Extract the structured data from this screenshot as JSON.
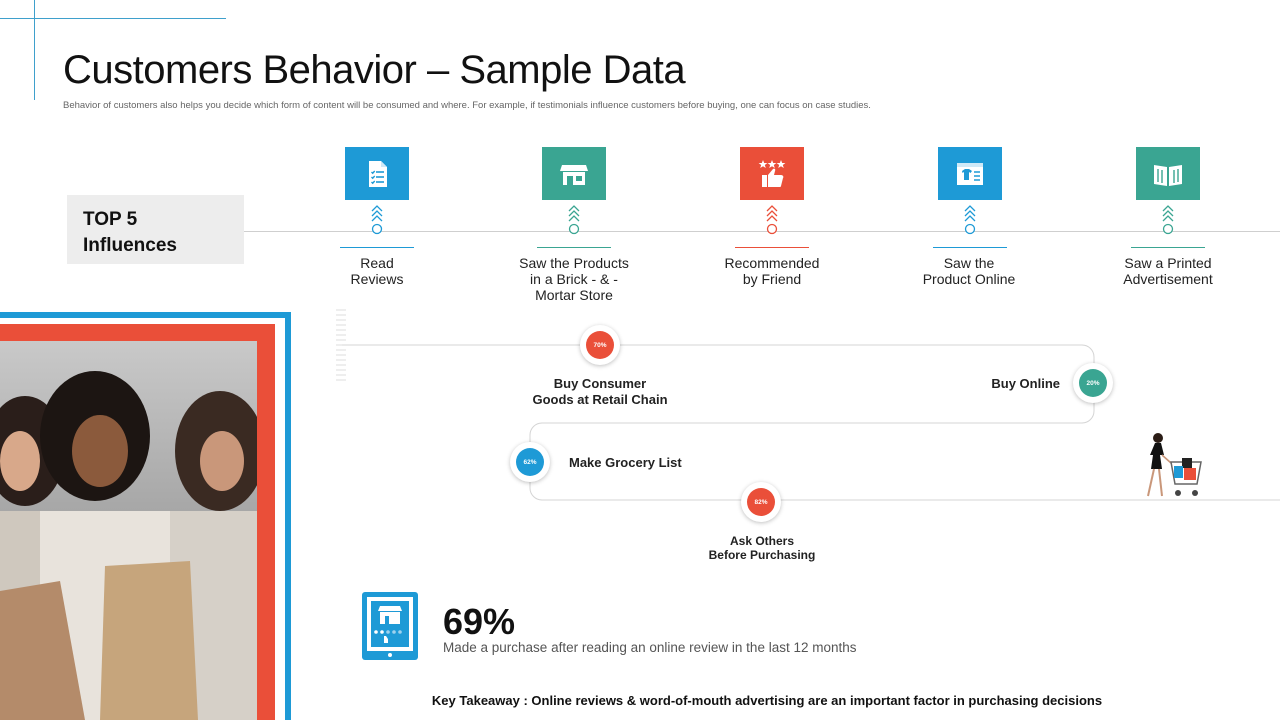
{
  "header": {
    "title": "Customers Behavior – Sample Data",
    "subtitle": "Behavior of customers also helps you decide which form of content will be consumed and where. For example, if testimonials influence customers before buying, one can focus on case studies."
  },
  "top5": {
    "label_line1": "TOP 5",
    "label_line2": "Influences"
  },
  "influences": [
    {
      "label_lines": [
        "Read",
        "Reviews"
      ],
      "icon": "document-checklist-icon",
      "color": "#1e9ad6"
    },
    {
      "label_lines": [
        "Saw the Products",
        "in a Brick - & -",
        "Mortar Store"
      ],
      "icon": "storefront-icon",
      "color": "#3aa592"
    },
    {
      "label_lines": [
        "Recommended",
        "by Friend"
      ],
      "icon": "thumbs-up-stars-icon",
      "color": "#ea4f39"
    },
    {
      "label_lines": [
        "Saw the",
        "Product Online"
      ],
      "icon": "browser-shirt-icon",
      "color": "#1e9ad6"
    },
    {
      "label_lines": [
        "Saw a Printed",
        "Advertisement"
      ],
      "icon": "open-book-icon",
      "color": "#3aa592"
    }
  ],
  "journey": {
    "steps": [
      {
        "label_lines": [
          "Buy Consumer",
          "Goods  at Retail Chain"
        ],
        "percent": "70%",
        "color": "#ea4f39"
      },
      {
        "label_lines": [
          "Buy Online"
        ],
        "percent": "20%",
        "color": "#3aa592"
      },
      {
        "label_lines": [
          "Make Grocery List"
        ],
        "percent": "62%",
        "color": "#1e9ad6"
      },
      {
        "label_lines": [
          "Ask Others",
          "Before Purchasing"
        ],
        "percent": "82%",
        "color": "#ea4f39"
      }
    ]
  },
  "stat": {
    "value": "69%",
    "description": "Made a purchase after reading an online review in the last 12 months"
  },
  "takeaway": "Key Takeaway : Online reviews & word-of-mouth  advertising are an important factor  in purchasing  decisions",
  "colors": {
    "blue": "#1e9ad6",
    "teal": "#3aa592",
    "red": "#ea4f39"
  }
}
